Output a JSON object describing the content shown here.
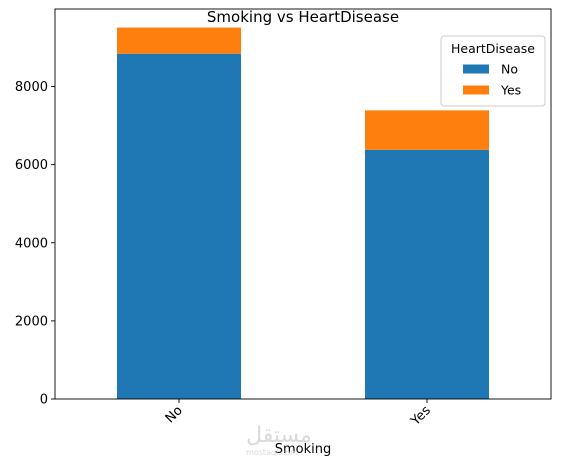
{
  "chart_data": {
    "type": "bar",
    "stacked": true,
    "title": "Smoking vs HeartDisease",
    "xlabel": "Smoking",
    "ylabel": "",
    "categories": [
      "No",
      "Yes"
    ],
    "series": [
      {
        "name": "No",
        "values": [
          8840,
          6380
        ],
        "color": "#1f77b4"
      },
      {
        "name": "Yes",
        "values": [
          670,
          1010
        ],
        "color": "#ff7f0e"
      }
    ],
    "ylim": [
      0,
      9985
    ],
    "yticks": [
      0,
      2000,
      4000,
      6000,
      8000
    ],
    "grid": false,
    "legend": {
      "title": "HeartDisease",
      "placement": "top-right"
    }
  },
  "watermark": {
    "text": "مستقل",
    "subtext": "mostaql.com"
  }
}
